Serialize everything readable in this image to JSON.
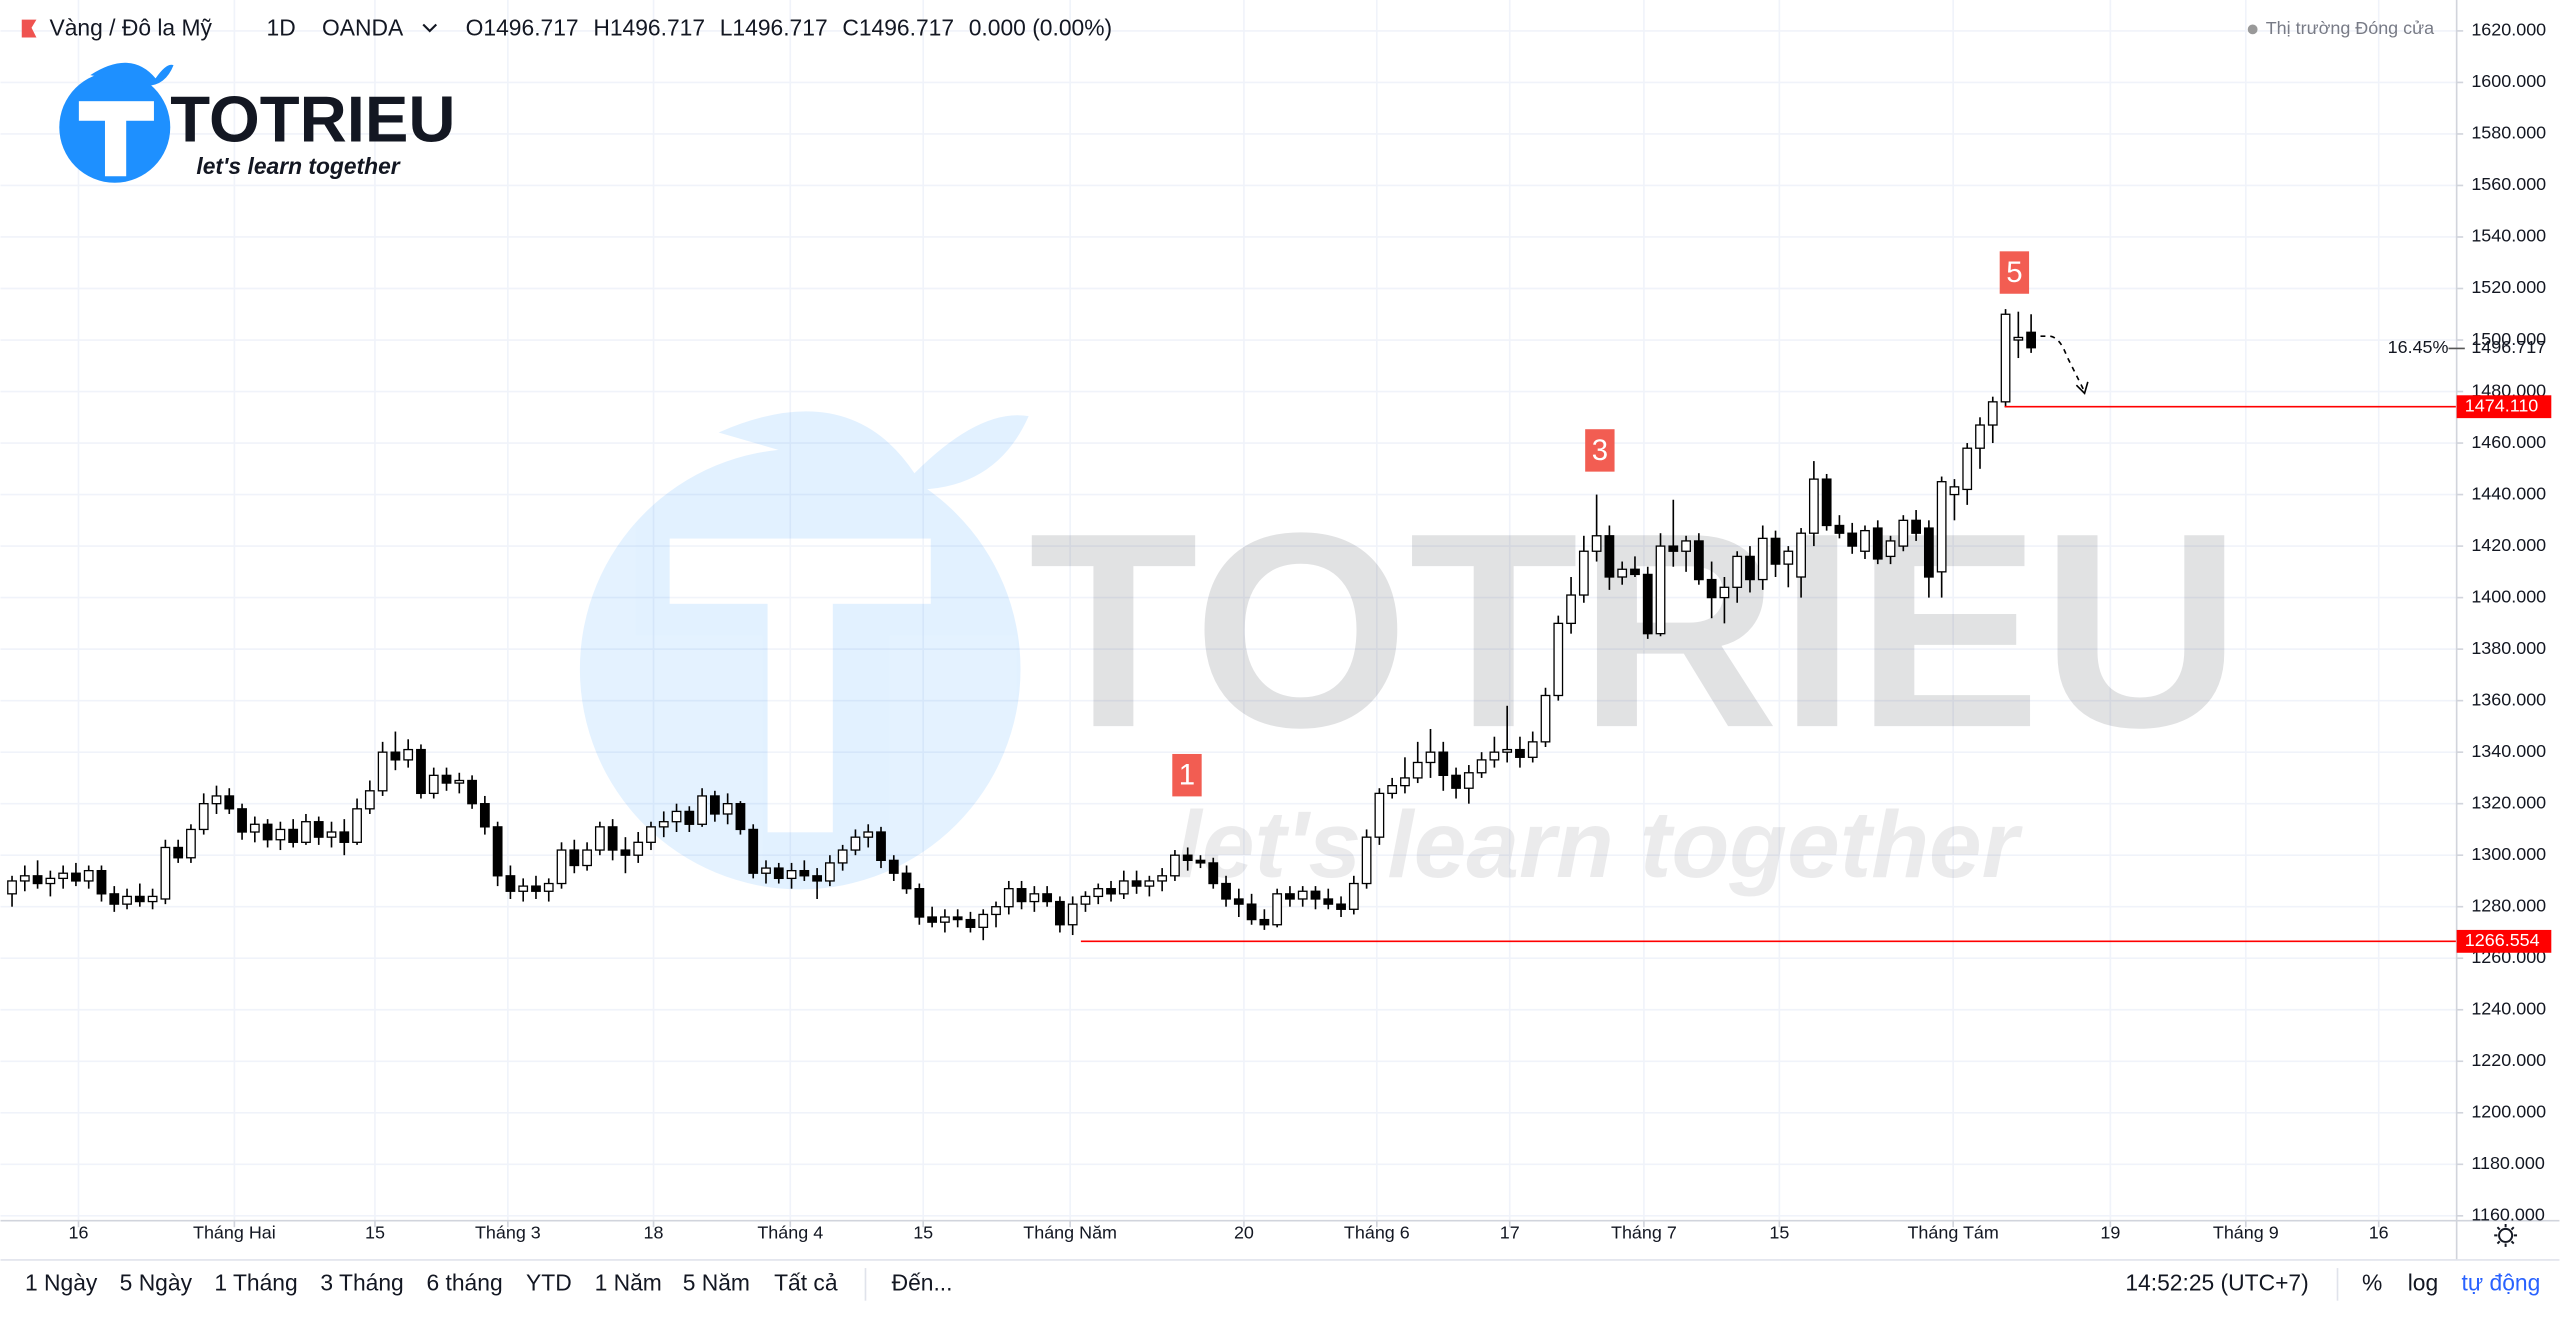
{
  "header": {
    "symbol": "Vàng / Đô la Mỹ",
    "interval": "1D",
    "source": "OANDA",
    "ohlc_labels": [
      "O",
      "H",
      "L",
      "C"
    ],
    "ohlc_values": [
      "1496.717",
      "1496.717",
      "1496.717",
      "1496.717"
    ],
    "change": "0.000 (0.00%)",
    "market_status": "Thị trường Đóng cửa"
  },
  "logo": {
    "name": "TOTRIEU",
    "slogan": "let's learn together"
  },
  "toolbar": {
    "ranges": [
      "1 Ngày",
      "5 Ngày",
      "1 Tháng",
      "3 Tháng",
      "6 tháng",
      "YTD",
      "1 Năm",
      "5 Năm",
      "Tất cả"
    ],
    "goto": "Đến...",
    "time": "14:52:25 (UTC+7)",
    "percent": "%",
    "log": "log",
    "auto": "tự động"
  },
  "chart_data": {
    "type": "candlestick",
    "ylim": [
      1158.1,
      1632.0
    ],
    "yticks": [
      {
        "value": 1160,
        "label": "1160.000"
      },
      {
        "value": 1180,
        "label": "1180.000"
      },
      {
        "value": 1200,
        "label": "1200.000"
      },
      {
        "value": 1220,
        "label": "1220.000"
      },
      {
        "value": 1240,
        "label": "1240.000"
      },
      {
        "value": 1260,
        "label": "1260.000"
      },
      {
        "value": 1280,
        "label": "1280.000"
      },
      {
        "value": 1300,
        "label": "1300.000"
      },
      {
        "value": 1320,
        "label": "1320.000"
      },
      {
        "value": 1340,
        "label": "1340.000"
      },
      {
        "value": 1360,
        "label": "1360.000"
      },
      {
        "value": 1380,
        "label": "1380.000"
      },
      {
        "value": 1400,
        "label": "1400.000"
      },
      {
        "value": 1420,
        "label": "1420.000"
      },
      {
        "value": 1440,
        "label": "1440.000"
      },
      {
        "value": 1460,
        "label": "1460.000"
      },
      {
        "value": 1480,
        "label": "1480.000"
      },
      {
        "value": 1500,
        "label": "1500.000"
      },
      {
        "value": 1520,
        "label": "1520.000"
      },
      {
        "value": 1540,
        "label": "1540.000"
      },
      {
        "value": 1560,
        "label": "1560.000"
      },
      {
        "value": 1580,
        "label": "1580.000"
      },
      {
        "value": 1600,
        "label": "1600.000"
      },
      {
        "value": 1620,
        "label": "1620.000"
      }
    ],
    "xlim": [
      -0.9,
      191.3
    ],
    "xticks": [
      {
        "value": 5.2,
        "label": "16"
      },
      {
        "value": 17.4,
        "label": "Tháng Hai"
      },
      {
        "value": 28.4,
        "label": "15"
      },
      {
        "value": 38.8,
        "label": "Tháng 3"
      },
      {
        "value": 50.2,
        "label": "18"
      },
      {
        "value": 60.9,
        "label": "Tháng 4"
      },
      {
        "value": 71.3,
        "label": "15"
      },
      {
        "value": 82.8,
        "label": "Tháng Năm"
      },
      {
        "value": 96.4,
        "label": "20"
      },
      {
        "value": 106.8,
        "label": "Tháng 6"
      },
      {
        "value": 117.2,
        "label": "17"
      },
      {
        "value": 127.7,
        "label": "Tháng 7"
      },
      {
        "value": 138.3,
        "label": "15"
      },
      {
        "value": 151.9,
        "label": "Tháng Tám"
      },
      {
        "value": 164.2,
        "label": "19"
      },
      {
        "value": 174.8,
        "label": "Tháng 9"
      },
      {
        "value": 185.2,
        "label": "16"
      }
    ],
    "grid": true,
    "up_color": "#ffffff",
    "down_color": "#000000",
    "ohlc": [
      [
        1285,
        1292,
        1280,
        1290
      ],
      [
        1290,
        1296,
        1286,
        1292
      ],
      [
        1292,
        1298,
        1287,
        1289
      ],
      [
        1289,
        1294,
        1284,
        1291
      ],
      [
        1291,
        1296,
        1287,
        1293
      ],
      [
        1293,
        1297,
        1288,
        1290
      ],
      [
        1290,
        1296,
        1287,
        1294
      ],
      [
        1294,
        1296,
        1282,
        1285
      ],
      [
        1285,
        1288,
        1278,
        1281
      ],
      [
        1281,
        1287,
        1279,
        1284
      ],
      [
        1284,
        1289,
        1280,
        1282
      ],
      [
        1282,
        1287,
        1279,
        1284
      ],
      [
        1283,
        1306,
        1281,
        1303
      ],
      [
        1303,
        1306,
        1297,
        1299
      ],
      [
        1299,
        1312,
        1297,
        1310
      ],
      [
        1310,
        1324,
        1308,
        1320
      ],
      [
        1320,
        1327,
        1316,
        1323
      ],
      [
        1323,
        1326,
        1316,
        1318
      ],
      [
        1318,
        1320,
        1306,
        1309
      ],
      [
        1309,
        1315,
        1305,
        1312
      ],
      [
        1312,
        1314,
        1303,
        1306
      ],
      [
        1306,
        1313,
        1302,
        1310
      ],
      [
        1310,
        1314,
        1303,
        1305
      ],
      [
        1305,
        1316,
        1304,
        1313
      ],
      [
        1313,
        1315,
        1304,
        1307
      ],
      [
        1307,
        1313,
        1303,
        1309
      ],
      [
        1309,
        1314,
        1300,
        1305
      ],
      [
        1305,
        1322,
        1304,
        1318
      ],
      [
        1318,
        1329,
        1316,
        1325
      ],
      [
        1325,
        1344,
        1323,
        1340
      ],
      [
        1340,
        1348,
        1333,
        1337
      ],
      [
        1337,
        1345,
        1334,
        1341
      ],
      [
        1341,
        1343,
        1322,
        1324
      ],
      [
        1324,
        1334,
        1322,
        1331
      ],
      [
        1331,
        1334,
        1325,
        1328
      ],
      [
        1328,
        1332,
        1324,
        1329
      ],
      [
        1329,
        1331,
        1318,
        1320
      ],
      [
        1320,
        1323,
        1308,
        1311
      ],
      [
        1311,
        1313,
        1288,
        1292
      ],
      [
        1292,
        1296,
        1283,
        1286
      ],
      [
        1286,
        1291,
        1282,
        1288
      ],
      [
        1288,
        1292,
        1283,
        1286
      ],
      [
        1286,
        1291,
        1282,
        1289
      ],
      [
        1289,
        1305,
        1287,
        1302
      ],
      [
        1302,
        1306,
        1293,
        1296
      ],
      [
        1296,
        1305,
        1294,
        1302
      ],
      [
        1302,
        1313,
        1300,
        1311
      ],
      [
        1311,
        1314,
        1298,
        1302
      ],
      [
        1302,
        1307,
        1293,
        1300
      ],
      [
        1300,
        1309,
        1297,
        1305
      ],
      [
        1305,
        1313,
        1302,
        1311
      ],
      [
        1311,
        1317,
        1307,
        1313
      ],
      [
        1313,
        1320,
        1309,
        1317
      ],
      [
        1317,
        1319,
        1309,
        1312
      ],
      [
        1312,
        1326,
        1311,
        1323
      ],
      [
        1323,
        1325,
        1313,
        1316
      ],
      [
        1316,
        1324,
        1312,
        1320
      ],
      [
        1320,
        1321,
        1308,
        1310
      ],
      [
        1310,
        1312,
        1291,
        1293
      ],
      [
        1293,
        1298,
        1289,
        1295
      ],
      [
        1295,
        1297,
        1289,
        1291
      ],
      [
        1291,
        1297,
        1287,
        1294
      ],
      [
        1294,
        1298,
        1290,
        1292
      ],
      [
        1292,
        1295,
        1283,
        1290
      ],
      [
        1290,
        1300,
        1288,
        1297
      ],
      [
        1297,
        1304,
        1294,
        1302
      ],
      [
        1302,
        1310,
        1300,
        1307
      ],
      [
        1307,
        1312,
        1303,
        1309
      ],
      [
        1309,
        1311,
        1295,
        1298
      ],
      [
        1298,
        1300,
        1290,
        1293
      ],
      [
        1293,
        1296,
        1285,
        1287
      ],
      [
        1287,
        1289,
        1273,
        1276
      ],
      [
        1276,
        1280,
        1272,
        1274
      ],
      [
        1274,
        1279,
        1270,
        1276
      ],
      [
        1276,
        1279,
        1272,
        1275
      ],
      [
        1275,
        1278,
        1270,
        1272
      ],
      [
        1272,
        1279,
        1267,
        1277
      ],
      [
        1277,
        1282,
        1272,
        1280
      ],
      [
        1280,
        1290,
        1277,
        1287
      ],
      [
        1287,
        1290,
        1279,
        1282
      ],
      [
        1282,
        1288,
        1278,
        1285
      ],
      [
        1285,
        1288,
        1280,
        1282
      ],
      [
        1282,
        1284,
        1270,
        1273
      ],
      [
        1273,
        1284,
        1269,
        1281
      ],
      [
        1281,
        1286,
        1278,
        1284
      ],
      [
        1284,
        1289,
        1281,
        1287
      ],
      [
        1287,
        1290,
        1282,
        1285
      ],
      [
        1285,
        1294,
        1283,
        1290
      ],
      [
        1290,
        1294,
        1285,
        1288
      ],
      [
        1288,
        1292,
        1284,
        1290
      ],
      [
        1290,
        1295,
        1286,
        1292
      ],
      [
        1292,
        1302,
        1290,
        1300
      ],
      [
        1300,
        1303,
        1294,
        1298
      ],
      [
        1298,
        1300,
        1295,
        1297
      ],
      [
        1297,
        1299,
        1287,
        1289
      ],
      [
        1289,
        1292,
        1280,
        1283
      ],
      [
        1283,
        1287,
        1276,
        1281
      ],
      [
        1281,
        1285,
        1273,
        1275
      ],
      [
        1275,
        1279,
        1271,
        1273
      ],
      [
        1273,
        1287,
        1272,
        1285
      ],
      [
        1285,
        1288,
        1280,
        1283
      ],
      [
        1283,
        1288,
        1280,
        1286
      ],
      [
        1286,
        1288,
        1279,
        1283
      ],
      [
        1283,
        1287,
        1279,
        1281
      ],
      [
        1281,
        1284,
        1276,
        1279
      ],
      [
        1279,
        1292,
        1277,
        1289
      ],
      [
        1289,
        1310,
        1287,
        1307
      ],
      [
        1307,
        1326,
        1304,
        1324
      ],
      [
        1324,
        1330,
        1322,
        1327
      ],
      [
        1327,
        1338,
        1324,
        1330
      ],
      [
        1330,
        1344,
        1328,
        1336
      ],
      [
        1336,
        1349,
        1330,
        1340
      ],
      [
        1340,
        1344,
        1325,
        1331
      ],
      [
        1331,
        1334,
        1322,
        1326
      ],
      [
        1326,
        1335,
        1320,
        1332
      ],
      [
        1332,
        1340,
        1330,
        1337
      ],
      [
        1337,
        1346,
        1334,
        1340
      ],
      [
        1340,
        1358,
        1336,
        1341
      ],
      [
        1341,
        1346,
        1334,
        1338
      ],
      [
        1338,
        1348,
        1336,
        1344
      ],
      [
        1344,
        1365,
        1342,
        1362
      ],
      [
        1362,
        1393,
        1360,
        1390
      ],
      [
        1390,
        1408,
        1386,
        1401
      ],
      [
        1401,
        1424,
        1398,
        1418
      ],
      [
        1418,
        1440,
        1414,
        1424
      ],
      [
        1424,
        1428,
        1403,
        1408
      ],
      [
        1408,
        1414,
        1405,
        1411
      ],
      [
        1411,
        1416,
        1408,
        1409
      ],
      [
        1409,
        1412,
        1384,
        1386
      ],
      [
        1386,
        1425,
        1385,
        1420
      ],
      [
        1420,
        1438,
        1412,
        1418
      ],
      [
        1418,
        1424,
        1410,
        1422
      ],
      [
        1422,
        1425,
        1405,
        1407
      ],
      [
        1407,
        1414,
        1392,
        1400
      ],
      [
        1400,
        1408,
        1390,
        1404
      ],
      [
        1404,
        1418,
        1398,
        1416
      ],
      [
        1416,
        1420,
        1402,
        1407
      ],
      [
        1407,
        1428,
        1403,
        1423
      ],
      [
        1423,
        1426,
        1408,
        1413
      ],
      [
        1413,
        1420,
        1404,
        1418
      ],
      [
        1408,
        1427,
        1400,
        1425
      ],
      [
        1425,
        1453,
        1420,
        1446
      ],
      [
        1446,
        1448,
        1426,
        1428
      ],
      [
        1428,
        1432,
        1423,
        1425
      ],
      [
        1425,
        1429,
        1417,
        1420
      ],
      [
        1418,
        1428,
        1415,
        1426
      ],
      [
        1427,
        1430,
        1413,
        1415
      ],
      [
        1416,
        1424,
        1413,
        1422
      ],
      [
        1420,
        1432,
        1418,
        1430
      ],
      [
        1430,
        1434,
        1422,
        1425
      ],
      [
        1427,
        1430,
        1400,
        1408
      ],
      [
        1410,
        1447,
        1400,
        1445
      ],
      [
        1440,
        1446,
        1430,
        1443
      ],
      [
        1442,
        1460,
        1436,
        1458
      ],
      [
        1458,
        1470,
        1450,
        1467
      ],
      [
        1467,
        1478,
        1460,
        1476
      ],
      [
        1476,
        1512,
        1474,
        1510
      ],
      [
        1500,
        1511,
        1493,
        1501
      ],
      [
        1503,
        1510,
        1495,
        1497
      ]
    ],
    "last_price": {
      "value": 1496.717,
      "label": "1496.717"
    },
    "last_change": "16.45%",
    "levels": [
      {
        "value": 1474.11,
        "label": "1474.110",
        "color": "#ff0000"
      },
      {
        "value": 1266.554,
        "label": "1266.554",
        "color": "#ff0000"
      }
    ],
    "annotations": [
      "1",
      "3",
      "5"
    ]
  }
}
